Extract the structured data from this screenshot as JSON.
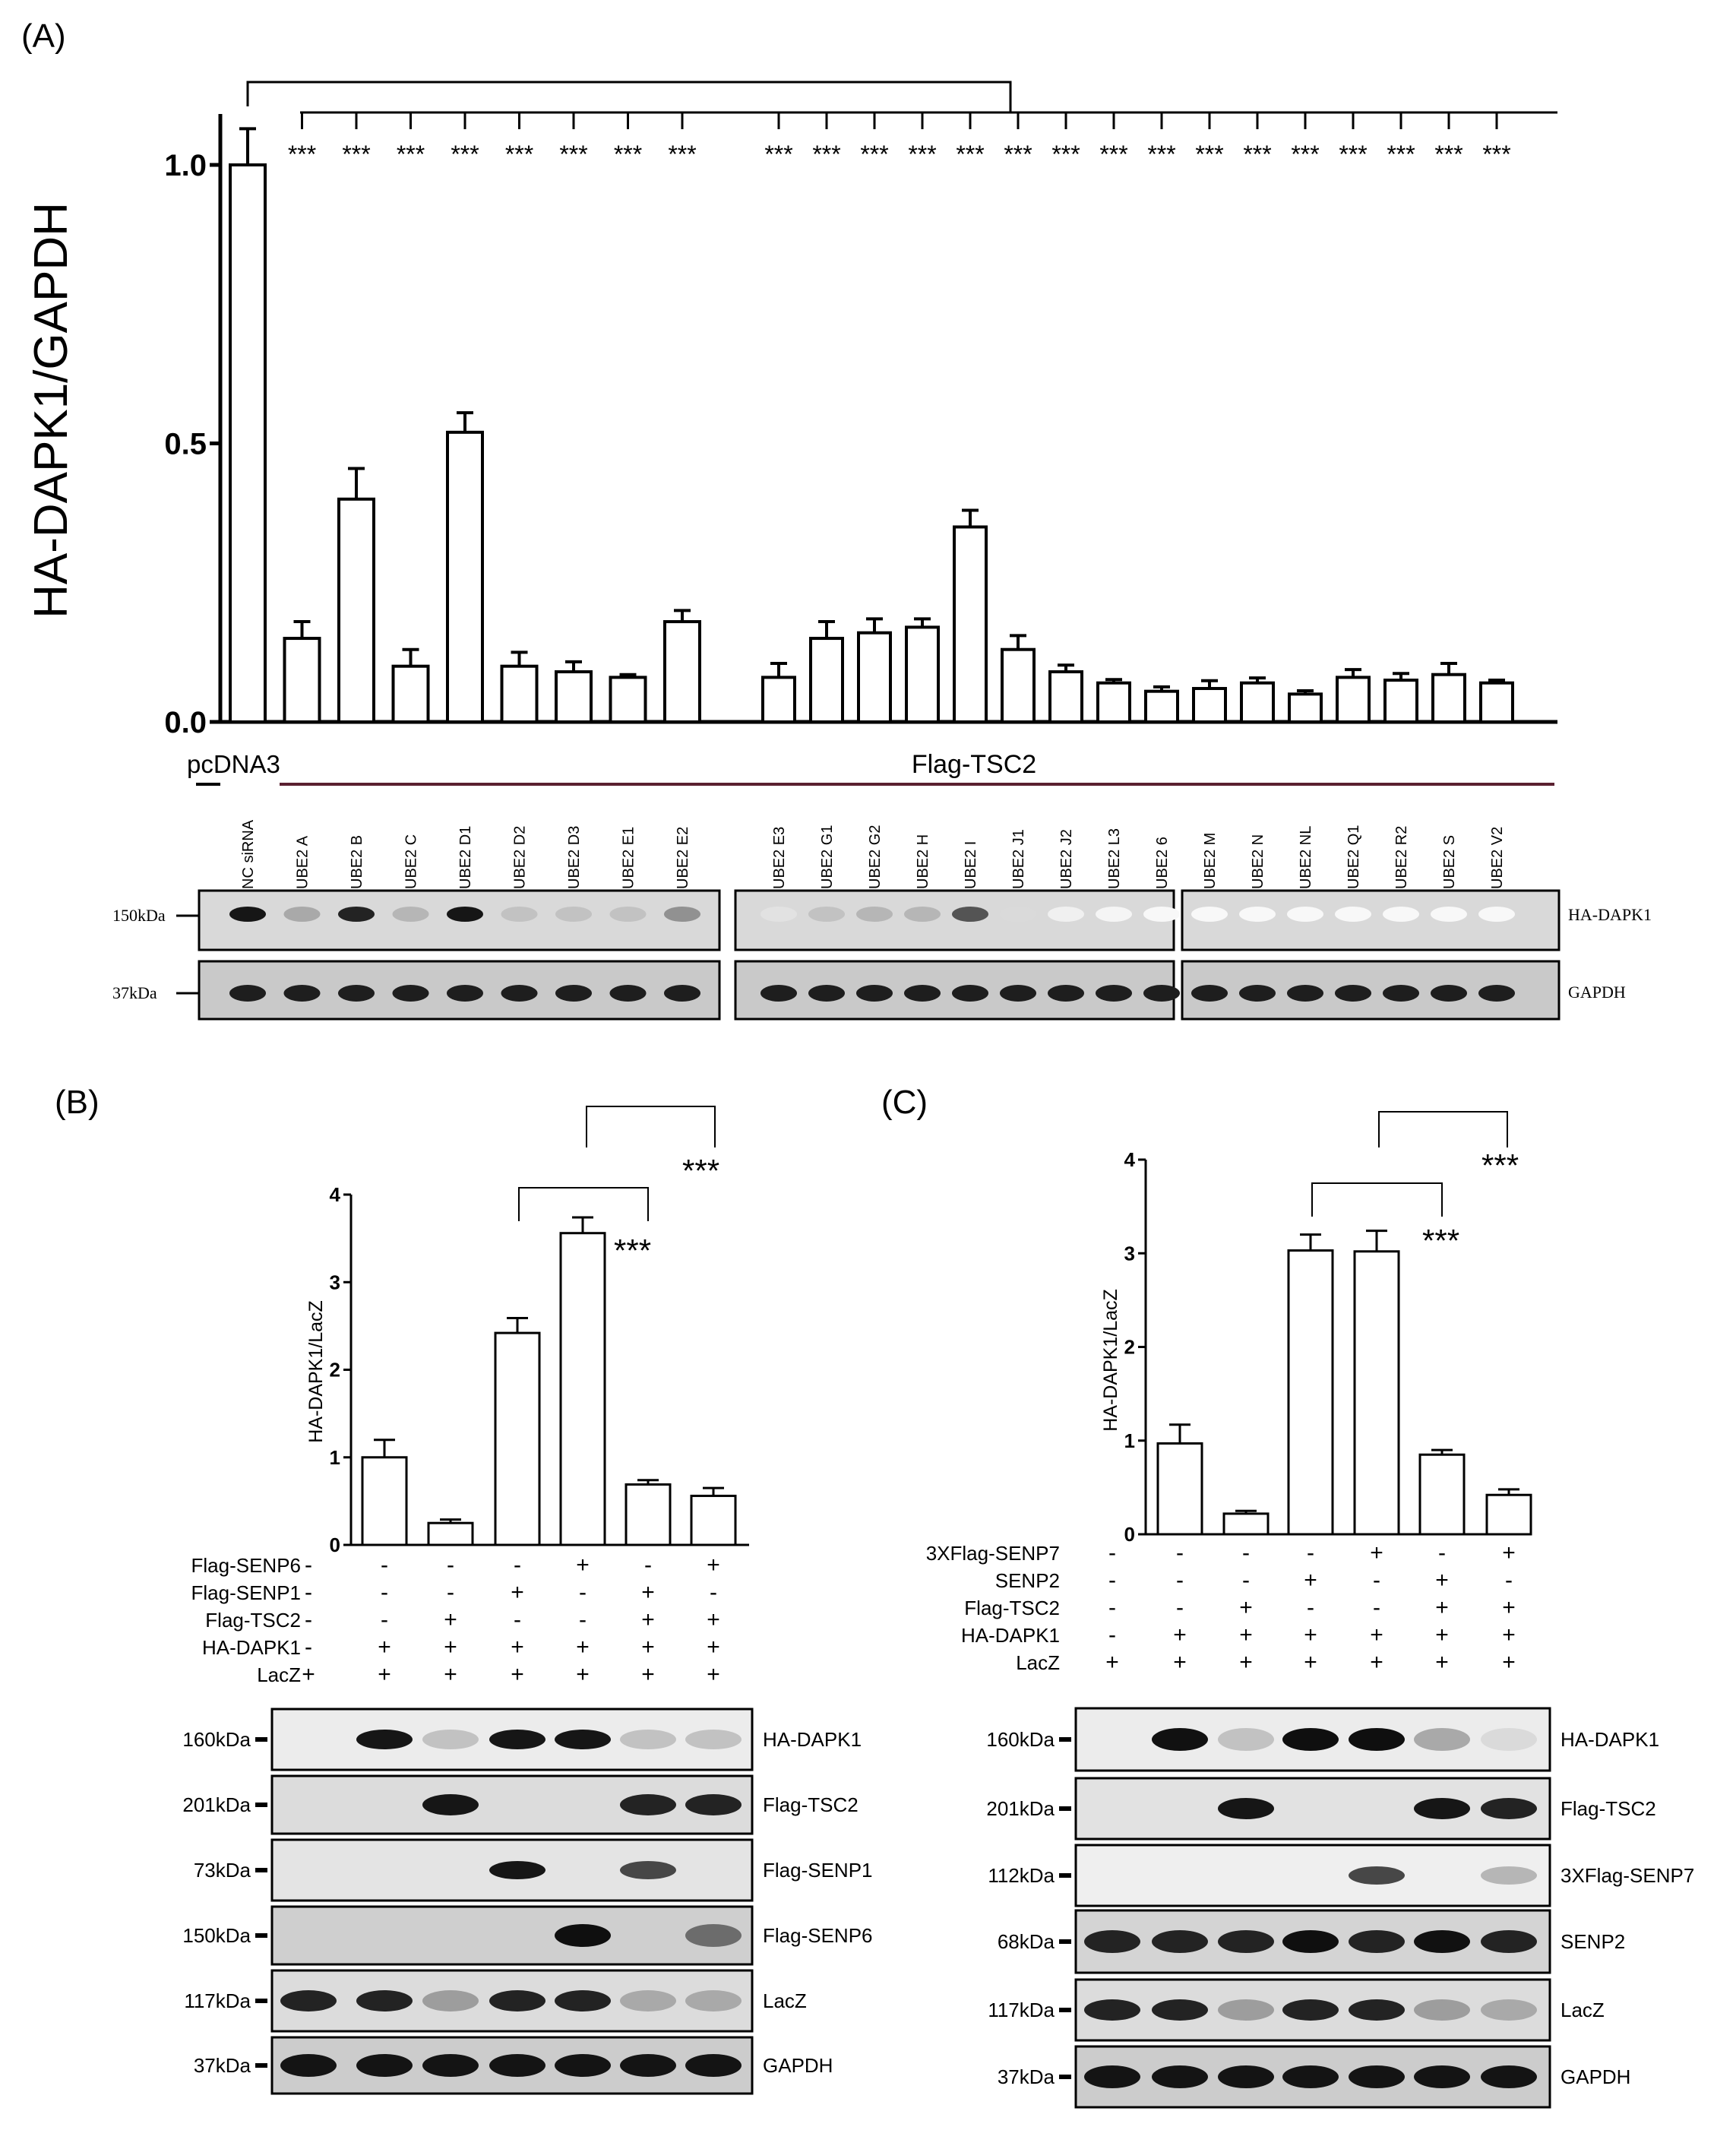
{
  "chart_data": [
    {
      "panel": "(A)",
      "type": "bar",
      "ylabel": "HA-DAPK1/GAPDH",
      "ylim": [
        0,
        1.05
      ],
      "yticks": [
        "0.0",
        "0.5",
        "1.0"
      ],
      "categories": [
        "NC siRNA",
        "UBE2 A",
        "UBE2 B",
        "UBE2 C",
        "UBE2 D1",
        "UBE2 D2",
        "UBE2 D3",
        "UBE2 E1",
        "UBE2 E2",
        "UBE2 E3",
        "UBE2 G1",
        "UBE2 G2",
        "UBE2 H",
        "UBE2 I",
        "UBE2 J1",
        "UBE2 J2",
        "UBE2 L3",
        "UBE2 6",
        "UBE2 M",
        "UBE2 N",
        "UBE2 NL",
        "UBE2 Q1",
        "UBE2 R2",
        "UBE2 S",
        "UBE2 V2"
      ],
      "values": [
        1.0,
        0.15,
        0.4,
        0.1,
        0.52,
        0.1,
        0.09,
        0.08,
        0.18,
        0.08,
        0.15,
        0.16,
        0.17,
        0.35,
        0.13,
        0.09,
        0.07,
        0.055,
        0.06,
        0.07,
        0.05,
        0.08,
        0.075,
        0.085,
        0.07
      ],
      "errors": [
        0.065,
        0.03,
        0.055,
        0.03,
        0.035,
        0.025,
        0.018,
        0.005,
        0.02,
        0.025,
        0.03,
        0.025,
        0.015,
        0.03,
        0.025,
        0.012,
        0.006,
        0.008,
        0.014,
        0.009,
        0.006,
        0.014,
        0.012,
        0.02,
        0.005
      ],
      "significance": "***",
      "group_labels": {
        "control": "pcDNA3",
        "treated": "Flag-TSC2"
      },
      "blots": [
        {
          "name": "HA-DAPK1",
          "marker": "150kDa"
        },
        {
          "name": "GAPDH",
          "marker": "37kDa"
        }
      ]
    },
    {
      "panel": "(B)",
      "type": "bar",
      "ylabel": "HA-DAPK1/LacZ",
      "ylim": [
        0,
        4
      ],
      "yticks": [
        "0",
        "1",
        "2",
        "3",
        "4"
      ],
      "values": [
        1.0,
        0.25,
        2.42,
        3.56,
        0.69,
        0.56
      ],
      "errors": [
        0.2,
        0.04,
        0.17,
        0.18,
        0.05,
        0.09
      ],
      "significance": "***",
      "conditions": [
        {
          "label": "Flag-SENP6",
          "signs": [
            "-",
            "-",
            "-",
            "+",
            "-",
            "+"
          ]
        },
        {
          "label": "Flag-SENP1",
          "signs": [
            "-",
            "-",
            "+",
            "-",
            "+",
            "-"
          ]
        },
        {
          "label": "Flag-TSC2",
          "signs": [
            "-",
            "+",
            "-",
            "-",
            "+",
            "+"
          ]
        },
        {
          "label": "HA-DAPK1",
          "signs": [
            "+",
            "+",
            "+",
            "+",
            "+",
            "+"
          ]
        },
        {
          "label": "LacZ",
          "signs": [
            "+",
            "+",
            "+",
            "+",
            "+",
            "+"
          ]
        }
      ],
      "condition_signs_lead": [
        "-",
        "-",
        "-",
        "-",
        "+"
      ],
      "blots": [
        {
          "name": "HA-DAPK1",
          "marker": "160kDa"
        },
        {
          "name": "Flag-TSC2",
          "marker": "201kDa"
        },
        {
          "name": "Flag-SENP1",
          "marker": "73kDa"
        },
        {
          "name": "Flag-SENP6",
          "marker": "150kDa"
        },
        {
          "name": "LacZ",
          "marker": "117kDa"
        },
        {
          "name": "GAPDH",
          "marker": "37kDa"
        }
      ]
    },
    {
      "panel": "(C)",
      "type": "bar",
      "ylabel": "HA-DAPK1/LacZ",
      "ylim": [
        0,
        4
      ],
      "yticks": [
        "0",
        "1",
        "2",
        "3",
        "4"
      ],
      "values": [
        0.97,
        0.22,
        3.03,
        3.02,
        0.85,
        0.42
      ],
      "errors": [
        0.2,
        0.03,
        0.17,
        0.22,
        0.05,
        0.06
      ],
      "significance": "***",
      "conditions": [
        {
          "label": "3XFlag-SENP7",
          "signs": [
            "-",
            "-",
            "-",
            "+",
            "-",
            "+"
          ]
        },
        {
          "label": "SENP2",
          "signs": [
            "-",
            "-",
            "+",
            "-",
            "+",
            "-"
          ]
        },
        {
          "label": "Flag-TSC2",
          "signs": [
            "-",
            "+",
            "-",
            "-",
            "+",
            "+"
          ]
        },
        {
          "label": "HA-DAPK1",
          "signs": [
            "+",
            "+",
            "+",
            "+",
            "+",
            "+"
          ]
        },
        {
          "label": "LacZ",
          "signs": [
            "+",
            "+",
            "+",
            "+",
            "+",
            "+"
          ]
        }
      ],
      "condition_signs_lead": [
        "-",
        "-",
        "-",
        "-",
        "+"
      ],
      "blots": [
        {
          "name": "HA-DAPK1",
          "marker": "160kDa"
        },
        {
          "name": "Flag-TSC2",
          "marker": "201kDa"
        },
        {
          "name": "3XFlag-SENP7",
          "marker": "112kDa"
        },
        {
          "name": "SENP2",
          "marker": "68kDa"
        },
        {
          "name": "LacZ",
          "marker": "117kDa"
        },
        {
          "name": "GAPDH",
          "marker": "37kDa"
        }
      ]
    }
  ]
}
